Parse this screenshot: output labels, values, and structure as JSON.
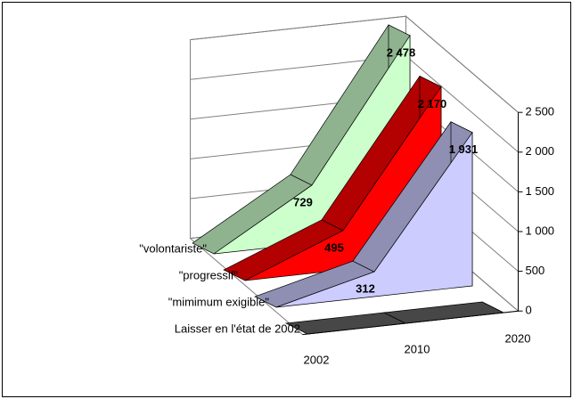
{
  "chart_data": {
    "type": "area3d",
    "categories": [
      "2002",
      "2010",
      "2020"
    ],
    "series": [
      {
        "name": "Laisser en l'état de 2002",
        "color": "#666666",
        "values": [
          0,
          0,
          0
        ]
      },
      {
        "name": "\"mimimum exigible\"",
        "color": "#ccccff",
        "values": [
          0,
          312,
          1931
        ],
        "value_labels": [
          null,
          "312",
          "1 931"
        ]
      },
      {
        "name": "\"progressif\"",
        "color": "#ff0000",
        "values": [
          0,
          495,
          2170
        ],
        "value_labels": [
          null,
          "495",
          "2 170"
        ]
      },
      {
        "name": "\"volontariste\"",
        "color": "#ccffcc",
        "values": [
          0,
          729,
          2478
        ],
        "value_labels": [
          null,
          "729",
          "2 478"
        ]
      }
    ],
    "ylim": [
      0,
      2500
    ],
    "yticks": [
      0,
      500,
      {
        "value": 1000,
        "label": "1 000"
      },
      {
        "value": 1500,
        "label": "1 500"
      },
      {
        "value": 2000,
        "label": "2 000"
      },
      {
        "value": 2500,
        "label": "2 500"
      }
    ],
    "grid": true
  }
}
